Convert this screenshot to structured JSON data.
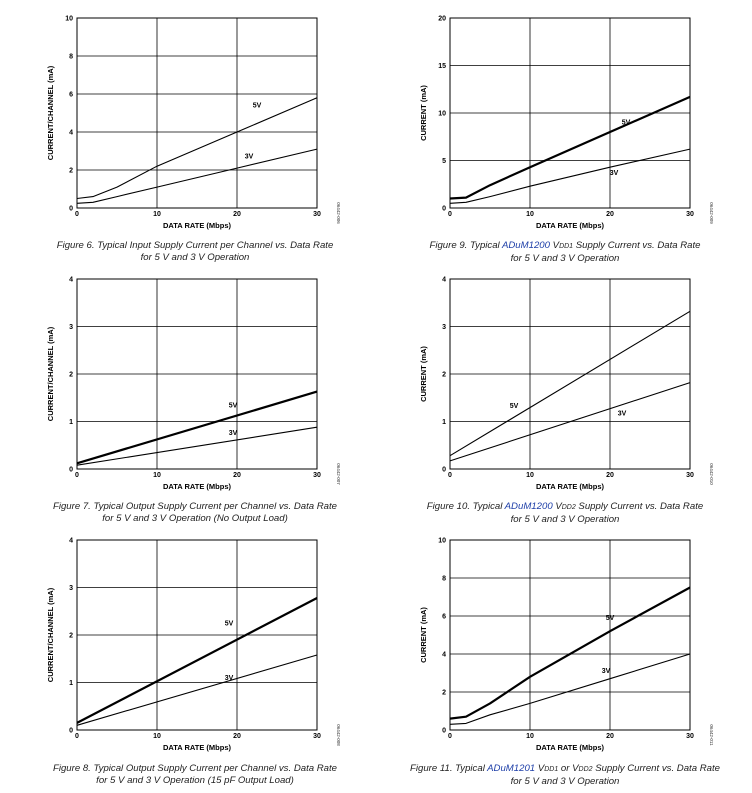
{
  "colors": {
    "axis": "#000000",
    "product_link": "#1e3fa8",
    "caption": "#222222"
  },
  "chart_data": [
    {
      "type": "line",
      "id": "fig6",
      "xlabel": "DATA RATE (Mbps)",
      "ylabel": "CURRENT/CHANNEL (mA)",
      "xlim": [
        0,
        30
      ],
      "ylim": [
        0,
        10
      ],
      "xticks": [
        "0",
        "10",
        "20",
        "30"
      ],
      "yticks": [
        "0",
        "2",
        "4",
        "6",
        "8",
        "10"
      ],
      "grid": true,
      "code": "06442-006",
      "series": [
        {
          "name": "5V",
          "weight": "thin",
          "x": [
            0,
            2,
            5,
            10,
            20,
            30
          ],
          "y": [
            0.5,
            0.6,
            1.1,
            2.2,
            4.0,
            5.8
          ]
        },
        {
          "name": "3V",
          "weight": "thin",
          "x": [
            0,
            2,
            5,
            10,
            20,
            30
          ],
          "y": [
            0.25,
            0.3,
            0.6,
            1.1,
            2.1,
            3.1
          ]
        }
      ],
      "caption": {
        "pre": "Figure 6. Typical Input Supply Current per Channel vs. Data Rate",
        "line2": "for 5 V and 3 V Operation"
      }
    },
    {
      "type": "line",
      "id": "fig9",
      "xlabel": "DATA RATE (Mbps)",
      "ylabel": "CURRENT (mA)",
      "xlim": [
        0,
        30
      ],
      "ylim": [
        0,
        20
      ],
      "xticks": [
        "0",
        "10",
        "20",
        "30"
      ],
      "yticks": [
        "0",
        "5",
        "10",
        "15",
        "20"
      ],
      "grid": true,
      "code": "06442-009",
      "series": [
        {
          "name": "5V",
          "weight": "thick",
          "x": [
            0,
            2,
            5,
            10,
            20,
            30
          ],
          "y": [
            1.0,
            1.1,
            2.4,
            4.3,
            8.0,
            11.7
          ]
        },
        {
          "name": "3V",
          "weight": "thin",
          "x": [
            0,
            2,
            5,
            10,
            20,
            30
          ],
          "y": [
            0.5,
            0.6,
            1.2,
            2.3,
            4.3,
            6.2
          ]
        }
      ],
      "caption": {
        "pre": "Figure 9. Typical ",
        "product": "ADuM1200",
        "v": "V",
        "sub": "DD1",
        "post": " Supply Current vs. Data Rate",
        "line2": "for 5 V and 3 V Operation"
      }
    },
    {
      "type": "line",
      "id": "fig7",
      "xlabel": "DATA RATE (Mbps)",
      "ylabel": "CURRENT/CHANNEL (mA)",
      "xlim": [
        0,
        30
      ],
      "ylim": [
        0,
        4
      ],
      "xticks": [
        "0",
        "10",
        "20",
        "30"
      ],
      "yticks": [
        "0",
        "1",
        "2",
        "3",
        "4"
      ],
      "grid": true,
      "code": "06442-007",
      "series": [
        {
          "name": "5V",
          "weight": "thick",
          "x": [
            0,
            30
          ],
          "y": [
            0.12,
            1.63
          ]
        },
        {
          "name": "3V",
          "weight": "thin",
          "x": [
            0,
            30
          ],
          "y": [
            0.08,
            0.88
          ]
        }
      ],
      "caption": {
        "pre": "Figure 7. Typical Output Supply Current per Channel vs. Data Rate",
        "line2": "for 5 V and 3 V Operation (No Output Load)"
      }
    },
    {
      "type": "line",
      "id": "fig10",
      "xlabel": "DATA RATE (Mbps)",
      "ylabel": "CURRENT (mA)",
      "xlim": [
        0,
        30
      ],
      "ylim": [
        0,
        4
      ],
      "xticks": [
        "0",
        "10",
        "20",
        "30"
      ],
      "yticks": [
        "0",
        "1",
        "2",
        "3",
        "4"
      ],
      "grid": true,
      "code": "06442-010",
      "series": [
        {
          "name": "5V",
          "weight": "thin",
          "x": [
            0,
            30
          ],
          "y": [
            0.28,
            3.32
          ]
        },
        {
          "name": "3V",
          "weight": "thin",
          "x": [
            0,
            30
          ],
          "y": [
            0.17,
            1.82
          ]
        }
      ],
      "caption": {
        "pre": "Figure 10. Typical ",
        "product": "ADuM1200",
        "v": "V",
        "sub": "DD2",
        "post": " Supply Current vs. Data Rate",
        "line2": "for 5 V and 3 V Operation"
      }
    },
    {
      "type": "line",
      "id": "fig8",
      "xlabel": "DATA RATE (Mbps)",
      "ylabel": "CURRENT/CHANNEL (mA)",
      "xlim": [
        0,
        30
      ],
      "ylim": [
        0,
        4
      ],
      "xticks": [
        "0",
        "10",
        "20",
        "30"
      ],
      "yticks": [
        "0",
        "1",
        "2",
        "3",
        "4"
      ],
      "grid": true,
      "code": "06442-008",
      "series": [
        {
          "name": "5V",
          "weight": "thick",
          "x": [
            0,
            30
          ],
          "y": [
            0.15,
            2.78
          ]
        },
        {
          "name": "3V",
          "weight": "thin",
          "x": [
            0,
            30
          ],
          "y": [
            0.1,
            1.58
          ]
        }
      ],
      "caption": {
        "pre": "Figure 8. Typical Output Supply Current per Channel vs. Data Rate",
        "line2": "for 5 V and 3 V Operation (15 pF Output Load)"
      }
    },
    {
      "type": "line",
      "id": "fig11",
      "xlabel": "DATA RATE (Mbps)",
      "ylabel": "CURRENT (mA)",
      "xlim": [
        0,
        30
      ],
      "ylim": [
        0,
        10
      ],
      "xticks": [
        "0",
        "10",
        "20",
        "30"
      ],
      "yticks": [
        "0",
        "2",
        "4",
        "6",
        "8",
        "10"
      ],
      "grid": true,
      "code": "06442-011",
      "series": [
        {
          "name": "5V",
          "weight": "thick",
          "x": [
            0,
            2,
            5,
            10,
            20,
            30
          ],
          "y": [
            0.6,
            0.7,
            1.4,
            2.8,
            5.2,
            7.5
          ]
        },
        {
          "name": "3V",
          "weight": "thin",
          "x": [
            0,
            2,
            5,
            10,
            20,
            30
          ],
          "y": [
            0.3,
            0.35,
            0.8,
            1.4,
            2.7,
            4.0
          ]
        }
      ],
      "caption": {
        "pre": "Figure 11. Typical ",
        "product": "ADuM1201",
        "v": "V",
        "sub": "DD1",
        "mid": " or ",
        "v2": "V",
        "sub2": "DD2",
        "post": " Supply Current vs. Data Rate",
        "line2": "for 5 V and 3 V Operation"
      }
    }
  ]
}
